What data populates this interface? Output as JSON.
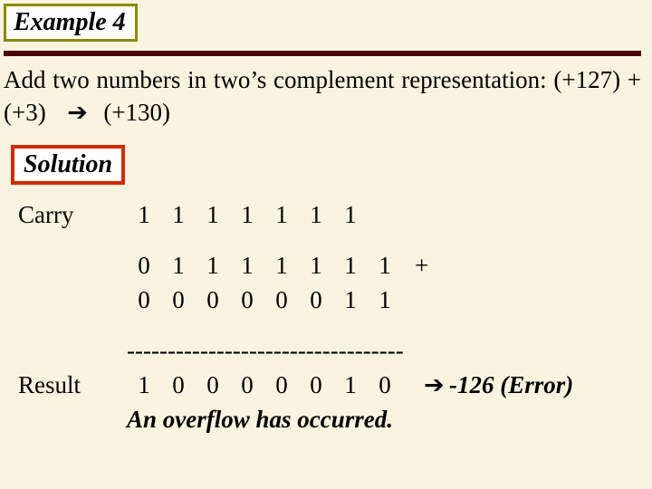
{
  "example_label": "Example 4",
  "problem_html": "Add two numbers in two&rsquo;s complement representation: (+127) + (+3) &nbsp;<span class=\"arrow\">&#x2794;</span>&nbsp; (+130)",
  "solution_label": "Solution",
  "labels": {
    "carry": "Carry",
    "result": "Result"
  },
  "carry_bits": [
    "1",
    "1",
    "1",
    "1",
    "1",
    "1",
    "1",
    ""
  ],
  "operand_a": [
    "0",
    "1",
    "1",
    "1",
    "1",
    "1",
    "1",
    "1"
  ],
  "operand_b": [
    "0",
    "0",
    "0",
    "0",
    "0",
    "0",
    "1",
    "1"
  ],
  "plus_symbol": "+",
  "dashes": "----------------------------------",
  "result_bits": [
    "1",
    "0",
    "0",
    "0",
    "0",
    "0",
    "1",
    "0"
  ],
  "result_arrow": "➔",
  "result_note": "-126 (Error)",
  "overflow_msg": "An overflow has occurred.",
  "colors": {
    "page_bg": "#f8f4e0",
    "example_border": "#8a8a00",
    "rule": "#4b0000",
    "solution_border": "#d02a00"
  }
}
